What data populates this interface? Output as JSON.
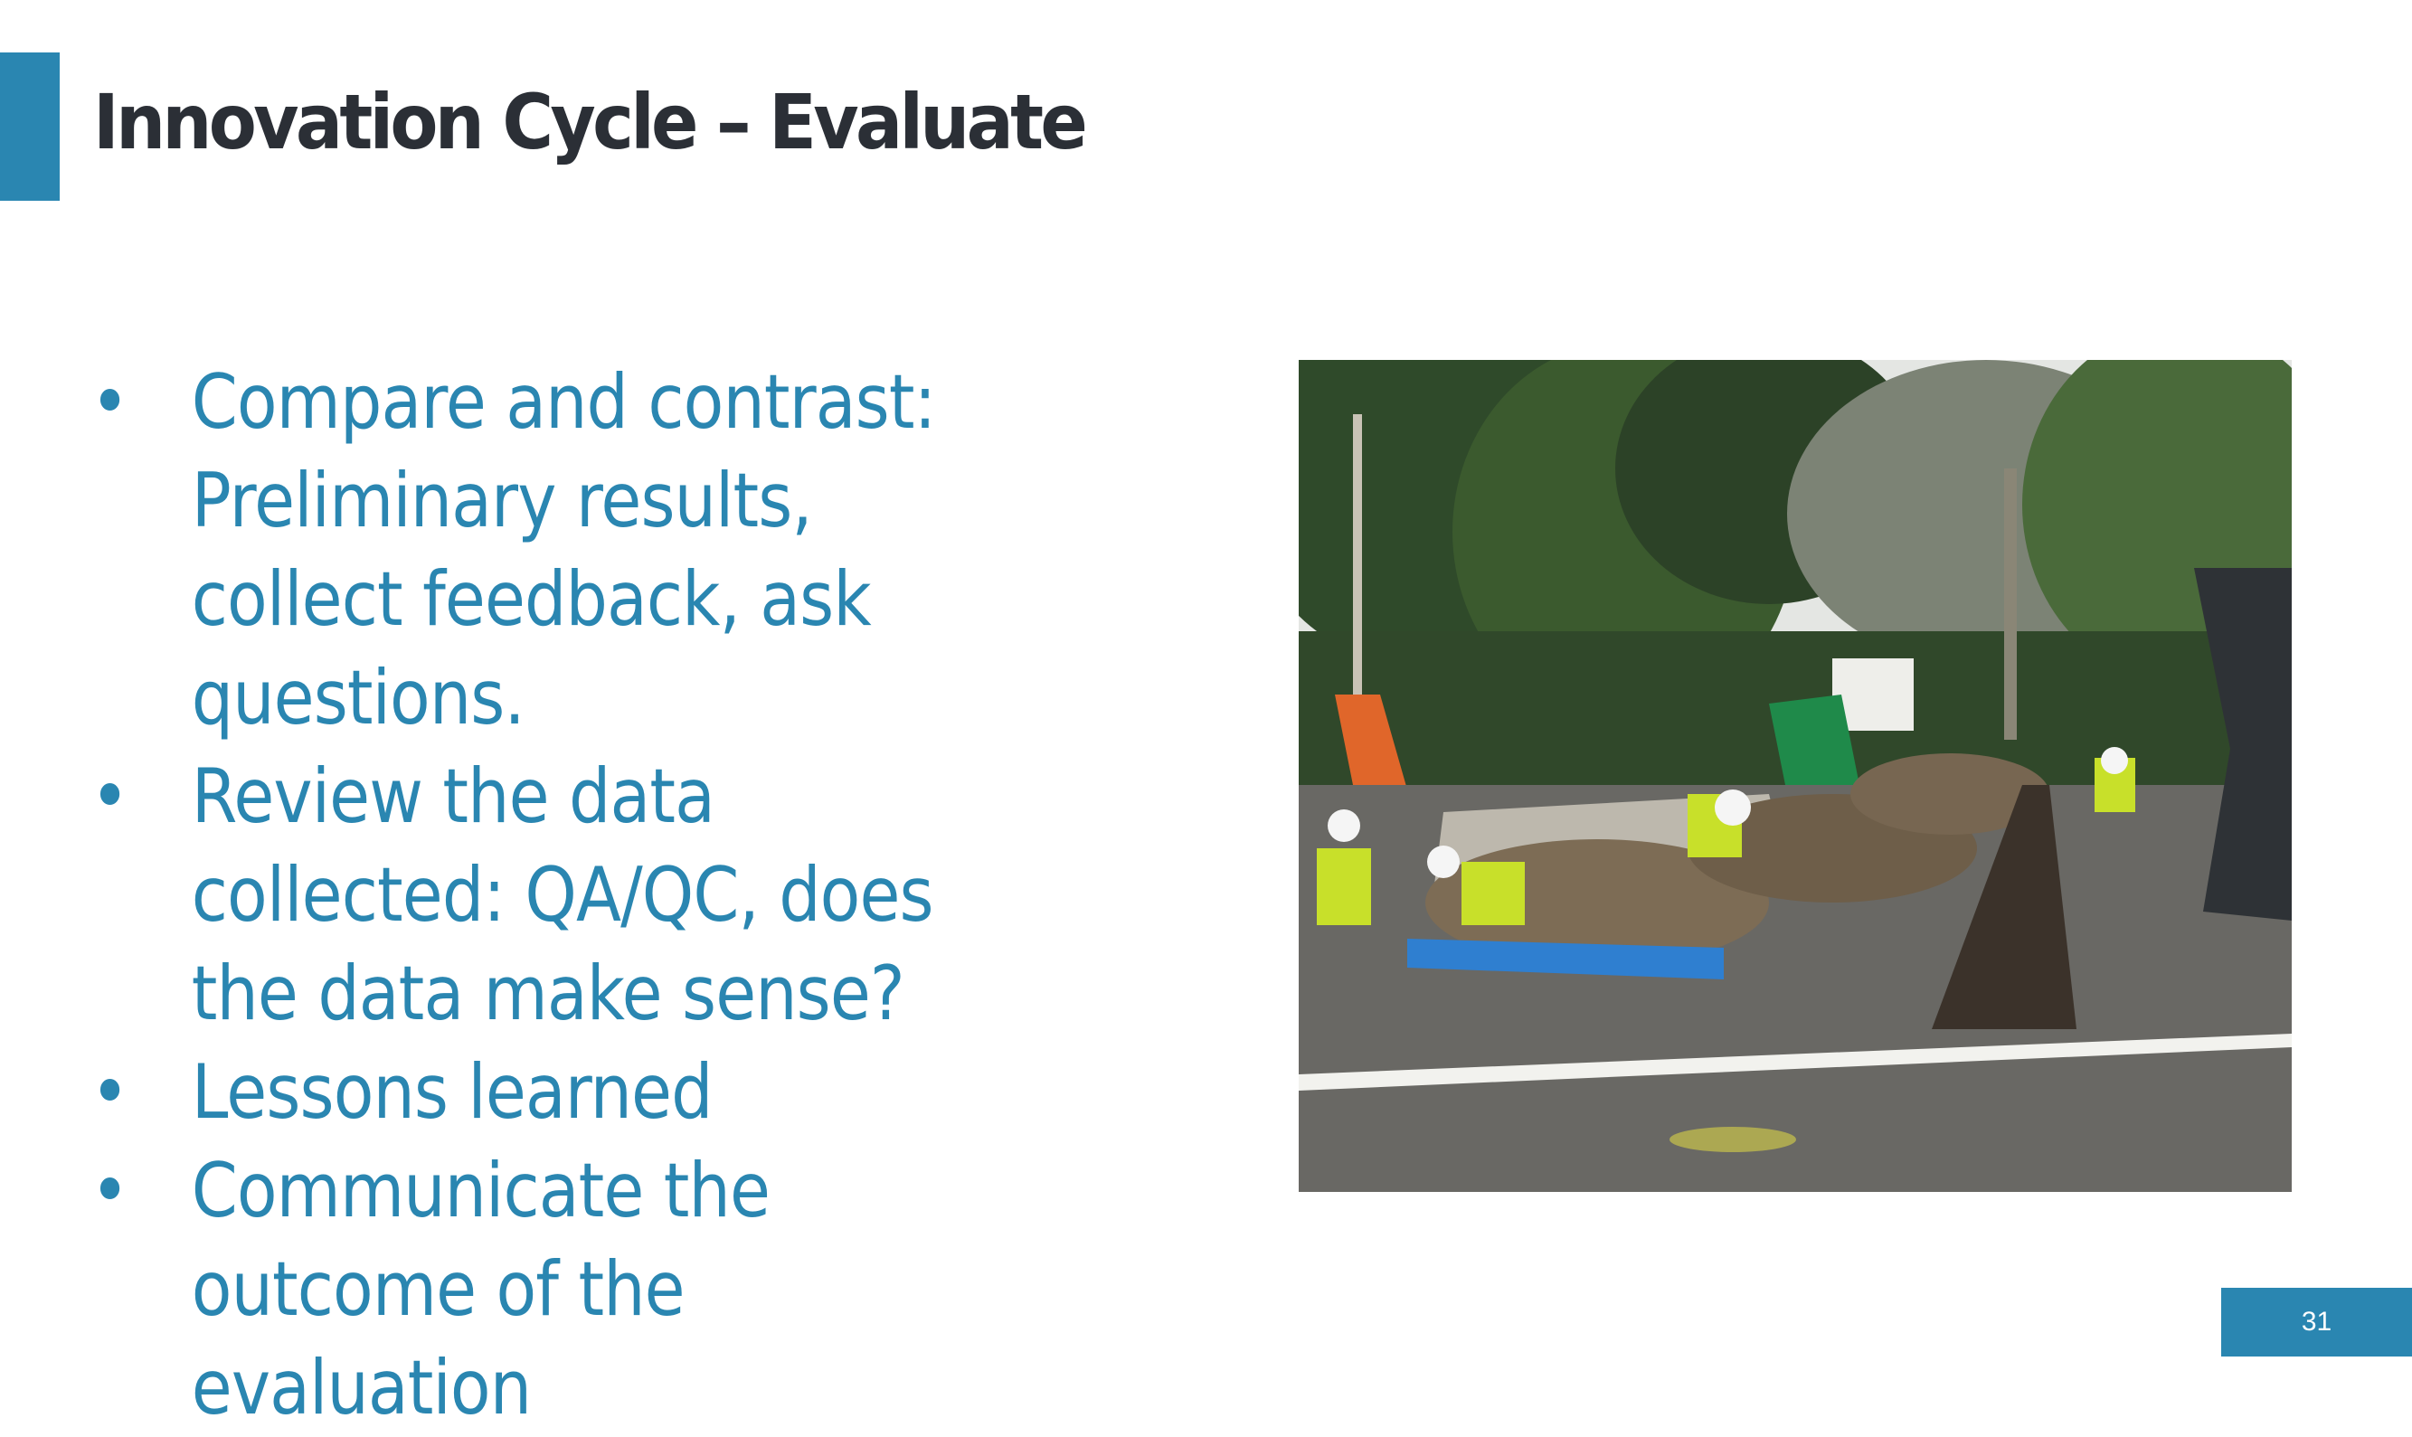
{
  "slide": {
    "title": "Innovation Cycle – Evaluate",
    "bullets": [
      {
        "marker": "•",
        "text": "Compare and contrast: Preliminary results, collect feedback, ask questions."
      },
      {
        "marker": "•",
        "text": "Review the data collected: QA/QC, does the data make sense?"
      },
      {
        "marker": "•",
        "text": "Lessons learned"
      },
      {
        "marker": "•",
        "text": "Communicate the outcome of the evaluation"
      }
    ],
    "page_number": "31"
  },
  "colors": {
    "accent": "#2a86b1",
    "title_text": "#2b2f36",
    "bullet_text": "#2a86b1"
  }
}
